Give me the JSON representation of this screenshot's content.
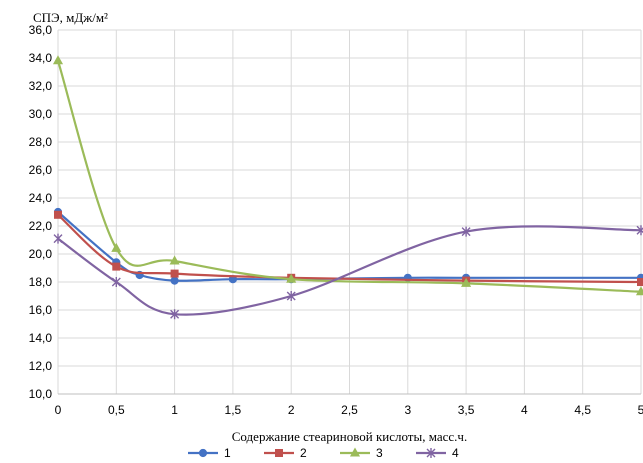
{
  "chart_data": {
    "type": "line",
    "title": "",
    "ylabel": "СПЭ, мДж/м²",
    "xlabel": "Содержание стеариновой кислоты, масс.ч.",
    "ylim": [
      10,
      36
    ],
    "xlim": [
      0,
      5
    ],
    "yticks": [
      "10,0",
      "12,0",
      "14,0",
      "16,0",
      "18,0",
      "20,0",
      "22,0",
      "24,0",
      "26,0",
      "28,0",
      "30,0",
      "32,0",
      "34,0",
      "36,0"
    ],
    "ytick_values": [
      10,
      12,
      14,
      16,
      18,
      20,
      22,
      24,
      26,
      28,
      30,
      32,
      34,
      36
    ],
    "xticks": [
      "0",
      "0,5",
      "1",
      "1,5",
      "2",
      "2,5",
      "3",
      "3,5",
      "4",
      "4,5",
      "5"
    ],
    "xtick_values": [
      0,
      0.5,
      1,
      1.5,
      2,
      2.5,
      3,
      3.5,
      4,
      4.5,
      5
    ],
    "grid": true,
    "legend_position": "bottom",
    "series": [
      {
        "name": "1",
        "color": "#4472C4",
        "marker": "circle",
        "x": [
          0,
          0.5,
          0.7,
          1,
          1.5,
          2,
          3,
          3.5,
          5
        ],
        "y": [
          23.0,
          19.4,
          18.5,
          18.1,
          18.2,
          18.2,
          18.3,
          18.3,
          18.3
        ]
      },
      {
        "name": "2",
        "color": "#C0504D",
        "marker": "square",
        "x": [
          0,
          0.5,
          1,
          2,
          3.5,
          5
        ],
        "y": [
          22.8,
          19.1,
          18.6,
          18.3,
          18.1,
          18.0
        ]
      },
      {
        "name": "3",
        "color": "#9BBB59",
        "marker": "triangle",
        "x": [
          0,
          0.5,
          1,
          2,
          3.5,
          5
        ],
        "y": [
          33.8,
          20.4,
          19.5,
          18.2,
          17.9,
          17.3
        ]
      },
      {
        "name": "4",
        "color": "#8064A2",
        "marker": "star",
        "x": [
          0,
          0.5,
          1,
          2,
          3.5,
          5
        ],
        "y": [
          21.1,
          18.0,
          15.7,
          17.0,
          21.6,
          21.7
        ]
      }
    ]
  }
}
